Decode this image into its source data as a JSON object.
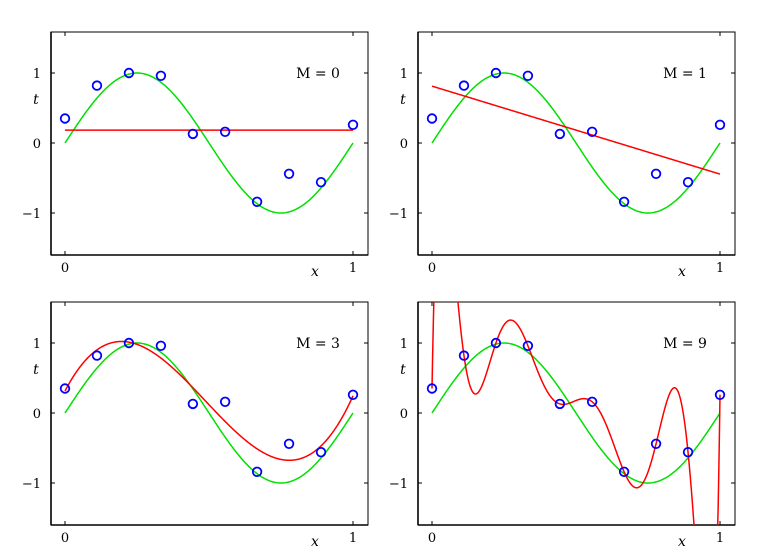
{
  "chart_data": [
    {
      "type": "line",
      "label": "M = 0",
      "M": 0
    },
    {
      "type": "line",
      "label": "M = 1",
      "M": 1
    },
    {
      "type": "line",
      "label": "M = 3",
      "M": 3
    },
    {
      "type": "line",
      "label": "M = 9",
      "M": 9
    }
  ],
  "shared": {
    "xlabel": "x",
    "ylabel": "t",
    "xticks": [
      0,
      1
    ],
    "xtick_labels": [
      "0",
      "1"
    ],
    "yticks": [
      -1,
      0,
      1
    ],
    "ytick_labels": [
      "−1",
      "0",
      "1"
    ],
    "xlim": [
      -0.05,
      1.05
    ],
    "ylim": [
      -1.6,
      1.6
    ],
    "data_points": {
      "x": [
        0,
        0.111,
        0.222,
        0.333,
        0.444,
        0.556,
        0.667,
        0.778,
        0.889,
        1
      ],
      "t": [
        0.35,
        0.82,
        1.0,
        0.96,
        0.13,
        0.16,
        -0.84,
        -0.44,
        -0.56,
        0.26
      ],
      "marker": "open-circle",
      "color": "#0000ff"
    },
    "true_curve": {
      "function": "sin(2πx)",
      "color": "#00e000"
    },
    "fit_curve": {
      "description": "polynomial least-squares fit of order M",
      "color": "#ff0000"
    }
  }
}
